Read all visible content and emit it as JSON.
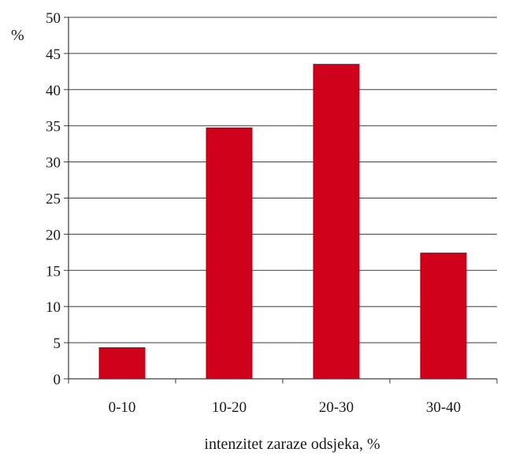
{
  "chart_data": {
    "type": "bar",
    "categories": [
      "0-10",
      "10-20",
      "20-30",
      "30-40"
    ],
    "values": [
      4.3,
      34.7,
      43.5,
      17.4
    ],
    "xlabel": "intenzitet zaraze odsjeka, %",
    "ylabel": "%",
    "ylim": [
      0,
      50
    ],
    "yticks": [
      0,
      5,
      10,
      15,
      20,
      25,
      30,
      35,
      40,
      45,
      50
    ],
    "grid": true,
    "bar_color": "#d0021b",
    "bar_edge_color": "#a8001a"
  }
}
